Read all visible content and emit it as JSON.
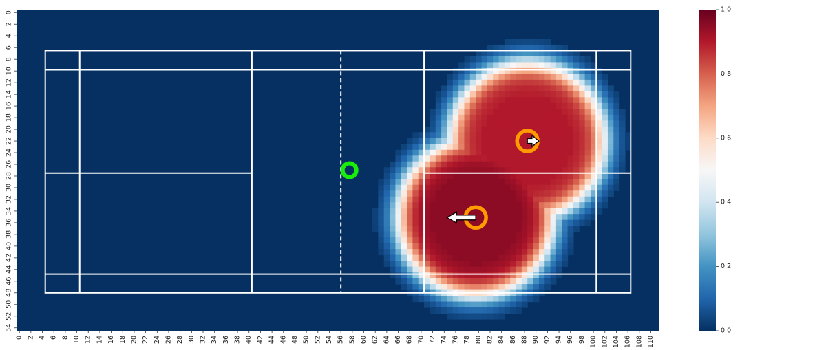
{
  "chart_data": {
    "type": "heatmap",
    "title": "",
    "xlabel": "",
    "ylabel": "",
    "x_ticks": [
      "0",
      "2",
      "4",
      "6",
      "8",
      "10",
      "12",
      "14",
      "16",
      "18",
      "20",
      "22",
      "24",
      "26",
      "28",
      "30",
      "32",
      "34",
      "36",
      "38",
      "40",
      "42",
      "44",
      "46",
      "48",
      "50",
      "52",
      "54",
      "56",
      "58",
      "60",
      "62",
      "64",
      "66",
      "68",
      "70",
      "72",
      "74",
      "76",
      "78",
      "80",
      "82",
      "84",
      "86",
      "88",
      "90",
      "92",
      "94",
      "96",
      "98",
      "100",
      "102",
      "104",
      "106",
      "108",
      "110"
    ],
    "y_ticks": [
      "0",
      "2",
      "4",
      "6",
      "8",
      "10",
      "12",
      "14",
      "16",
      "18",
      "20",
      "22",
      "24",
      "26",
      "28",
      "30",
      "32",
      "34",
      "36",
      "38",
      "40",
      "42",
      "44",
      "46",
      "48",
      "50",
      "52",
      "54"
    ],
    "xlim": [
      0,
      112
    ],
    "ylim": [
      0,
      55
    ],
    "colormap": "RdBu_r",
    "colorbar": {
      "vmin": 0.0,
      "vmax": 1.0,
      "ticks": [
        "0.0",
        "0.2",
        "0.4",
        "0.6",
        "0.8",
        "1.0"
      ]
    },
    "court": {
      "color": "#ffffff",
      "outer": [
        5,
        7,
        107,
        48.5
      ],
      "inner_top_y": 10.3,
      "inner_bottom_y": 45.3,
      "service_x": [
        11,
        41,
        71,
        101
      ],
      "center_y": 28,
      "net_x": 56.5
    },
    "hot_zones": [
      {
        "center": [
          80,
          35.6
        ],
        "radius": 12,
        "peak": 0.95
      },
      {
        "center": [
          89,
          22.5
        ],
        "radius": 12,
        "peak": 0.9
      }
    ],
    "markers": [
      {
        "name": "ball",
        "shape": "ring",
        "color": "#19ee0a",
        "x": 58,
        "y": 27.5
      },
      {
        "name": "player-1",
        "shape": "ring",
        "color": "#ff9a00",
        "x": 80,
        "y": 35.6,
        "arrow": {
          "dx": -5,
          "dy": 0,
          "fill": "#ffffff"
        }
      },
      {
        "name": "player-2",
        "shape": "ring",
        "color": "#ff9a00",
        "x": 89,
        "y": 22.5,
        "arrow": {
          "dx": 2,
          "dy": 0,
          "fill": "#ffffff"
        }
      }
    ]
  }
}
